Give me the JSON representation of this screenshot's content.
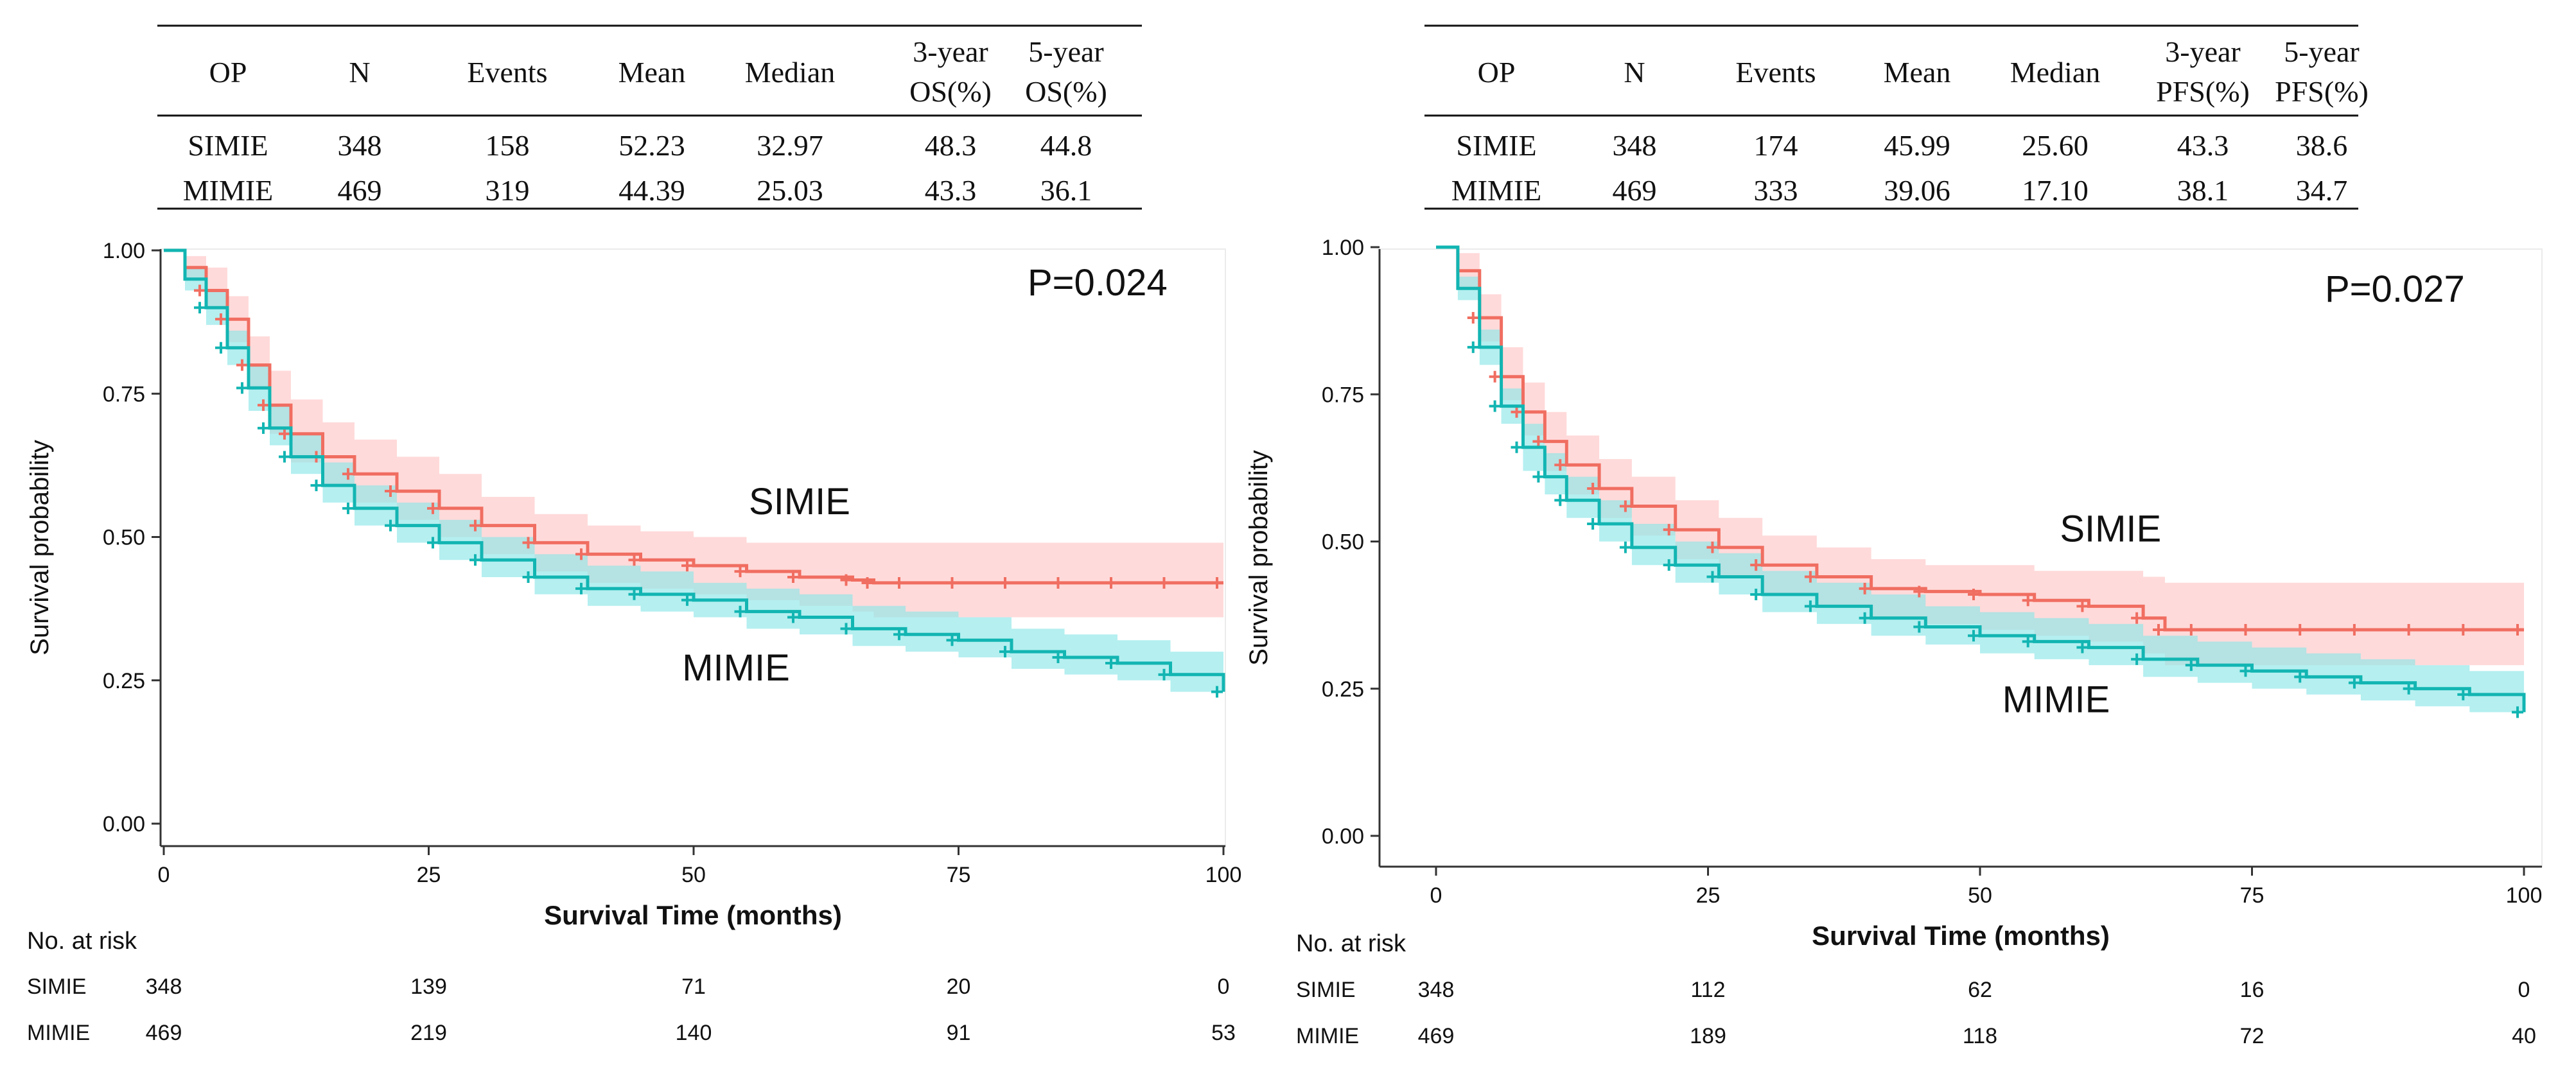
{
  "colors": {
    "simie": "#F06E61",
    "mimie": "#12B5B2",
    "simie_ci": "#FFC6C6",
    "mimie_ci": "#8DE6E8",
    "axis": "#333333"
  },
  "chart_data": [
    {
      "type": "line",
      "subtype": "kaplan-meier",
      "title": "",
      "xlabel": "Survival Time (months)",
      "ylabel": "Survival probability",
      "xlim": [
        0,
        100
      ],
      "ylim": [
        0,
        1
      ],
      "x_ticks": [
        "0",
        "25",
        "50",
        "75",
        "100"
      ],
      "y_ticks": [
        "0.00",
        "0.25",
        "0.50",
        "0.75",
        "1.00"
      ],
      "grid": false,
      "p_value": "P=0.024",
      "stats_table": {
        "headers": [
          "OP",
          "N",
          "Events",
          "Mean",
          "Median",
          "3-year OS(%)",
          "5-year OS(%)"
        ],
        "rows": [
          [
            "SIMIE",
            "348",
            "158",
            "52.23",
            "32.97",
            "48.3",
            "44.8"
          ],
          [
            "MIMIE",
            "469",
            "319",
            "44.39",
            "25.03",
            "43.3",
            "36.1"
          ]
        ]
      },
      "risk_table": {
        "title": "No. at risk",
        "times": [
          0,
          25,
          50,
          75,
          100
        ],
        "rows": [
          {
            "label": "SIMIE",
            "values": [
              "348",
              "139",
              "71",
              "20",
              "0"
            ]
          },
          {
            "label": "MIMIE",
            "values": [
              "469",
              "219",
              "140",
              "91",
              "53"
            ]
          }
        ]
      },
      "series": [
        {
          "name": "SIMIE",
          "label_pos": [
            60,
            0.54
          ],
          "x": [
            0,
            2,
            4,
            6,
            8,
            10,
            12,
            15,
            18,
            22,
            26,
            30,
            35,
            40,
            45,
            50,
            55,
            60,
            65,
            67,
            70,
            75,
            80,
            85,
            90,
            95,
            100
          ],
          "y": [
            1.0,
            0.97,
            0.93,
            0.88,
            0.8,
            0.73,
            0.68,
            0.64,
            0.61,
            0.58,
            0.55,
            0.52,
            0.49,
            0.47,
            0.46,
            0.45,
            0.44,
            0.43,
            0.425,
            0.42,
            0.42,
            0.42,
            0.42,
            0.42,
            0.42,
            0.42,
            0.42
          ],
          "ci_lower": [
            1.0,
            0.95,
            0.9,
            0.84,
            0.76,
            0.68,
            0.63,
            0.59,
            0.56,
            0.53,
            0.5,
            0.47,
            0.44,
            0.42,
            0.41,
            0.4,
            0.39,
            0.38,
            0.37,
            0.36,
            0.36,
            0.36,
            0.36,
            0.36,
            0.36,
            0.36,
            0.36
          ],
          "ci_upper": [
            1.0,
            0.99,
            0.97,
            0.92,
            0.85,
            0.79,
            0.74,
            0.7,
            0.67,
            0.64,
            0.61,
            0.57,
            0.54,
            0.52,
            0.51,
            0.5,
            0.49,
            0.49,
            0.49,
            0.49,
            0.49,
            0.49,
            0.49,
            0.49,
            0.49,
            0.49,
            0.49
          ]
        },
        {
          "name": "MIMIE",
          "label_pos": [
            54,
            0.25
          ],
          "x": [
            0,
            2,
            4,
            6,
            8,
            10,
            12,
            15,
            18,
            22,
            26,
            30,
            35,
            40,
            45,
            50,
            55,
            60,
            65,
            70,
            75,
            80,
            85,
            90,
            95,
            100
          ],
          "y": [
            1.0,
            0.95,
            0.9,
            0.83,
            0.76,
            0.69,
            0.64,
            0.59,
            0.55,
            0.52,
            0.49,
            0.46,
            0.43,
            0.41,
            0.4,
            0.39,
            0.37,
            0.36,
            0.34,
            0.33,
            0.32,
            0.3,
            0.29,
            0.28,
            0.26,
            0.23
          ],
          "ci_lower": [
            1.0,
            0.93,
            0.87,
            0.8,
            0.72,
            0.66,
            0.61,
            0.56,
            0.52,
            0.49,
            0.46,
            0.43,
            0.4,
            0.38,
            0.37,
            0.36,
            0.34,
            0.33,
            0.31,
            0.3,
            0.29,
            0.27,
            0.26,
            0.25,
            0.23,
            0.2
          ],
          "ci_upper": [
            1.0,
            0.97,
            0.93,
            0.86,
            0.8,
            0.73,
            0.68,
            0.63,
            0.59,
            0.56,
            0.53,
            0.5,
            0.47,
            0.45,
            0.44,
            0.42,
            0.41,
            0.4,
            0.38,
            0.37,
            0.36,
            0.34,
            0.33,
            0.32,
            0.3,
            0.27
          ]
        }
      ]
    },
    {
      "type": "line",
      "subtype": "kaplan-meier",
      "title": "",
      "xlabel": "Survival Time (months)",
      "ylabel": "Survival probability",
      "xlim": [
        0,
        100
      ],
      "ylim": [
        0,
        1
      ],
      "x_ticks": [
        "0",
        "25",
        "50",
        "75",
        "100"
      ],
      "y_ticks": [
        "0.00",
        "0.25",
        "0.50",
        "0.75",
        "1.00"
      ],
      "grid": false,
      "p_value": "P=0.027",
      "stats_table": {
        "headers": [
          "OP",
          "N",
          "Events",
          "Mean",
          "Median",
          "3-year PFS(%)",
          "5-year PFS(%)"
        ],
        "rows": [
          [
            "SIMIE",
            "348",
            "174",
            "45.99",
            "25.60",
            "43.3",
            "38.6"
          ],
          [
            "MIMIE",
            "469",
            "333",
            "39.06",
            "17.10",
            "38.1",
            "34.7"
          ]
        ]
      },
      "risk_table": {
        "title": "No. at risk",
        "times": [
          0,
          25,
          50,
          75,
          100
        ],
        "rows": [
          {
            "label": "SIMIE",
            "values": [
              "348",
              "112",
              "62",
              "16",
              "0"
            ]
          },
          {
            "label": "MIMIE",
            "values": [
              "469",
              "189",
              "118",
              "72",
              "40"
            ]
          }
        ]
      },
      "series": [
        {
          "name": "SIMIE",
          "label_pos": [
            62,
            0.5
          ],
          "x": [
            0,
            2,
            4,
            6,
            8,
            10,
            12,
            15,
            18,
            22,
            26,
            30,
            35,
            40,
            45,
            50,
            55,
            60,
            65,
            67,
            70,
            75,
            80,
            85,
            90,
            95,
            100
          ],
          "y": [
            1.0,
            0.96,
            0.88,
            0.78,
            0.72,
            0.67,
            0.63,
            0.59,
            0.56,
            0.52,
            0.49,
            0.46,
            0.44,
            0.42,
            0.415,
            0.41,
            0.4,
            0.39,
            0.37,
            0.35,
            0.35,
            0.35,
            0.35,
            0.35,
            0.35,
            0.35,
            0.35
          ],
          "ci_lower": [
            1.0,
            0.93,
            0.84,
            0.74,
            0.68,
            0.62,
            0.58,
            0.54,
            0.51,
            0.47,
            0.44,
            0.41,
            0.39,
            0.37,
            0.36,
            0.35,
            0.34,
            0.33,
            0.31,
            0.29,
            0.29,
            0.29,
            0.29,
            0.29,
            0.29,
            0.29,
            0.29
          ],
          "ci_upper": [
            1.0,
            0.99,
            0.92,
            0.83,
            0.77,
            0.72,
            0.68,
            0.64,
            0.61,
            0.57,
            0.54,
            0.51,
            0.49,
            0.47,
            0.46,
            0.46,
            0.45,
            0.45,
            0.44,
            0.43,
            0.43,
            0.43,
            0.43,
            0.43,
            0.43,
            0.43,
            0.43
          ]
        },
        {
          "name": "MIMIE",
          "label_pos": [
            57,
            0.21
          ],
          "x": [
            0,
            2,
            4,
            6,
            8,
            10,
            12,
            15,
            18,
            22,
            26,
            30,
            35,
            40,
            45,
            50,
            55,
            60,
            65,
            70,
            75,
            80,
            85,
            90,
            95,
            100
          ],
          "y": [
            1.0,
            0.93,
            0.83,
            0.73,
            0.66,
            0.61,
            0.57,
            0.53,
            0.49,
            0.46,
            0.44,
            0.41,
            0.39,
            0.37,
            0.355,
            0.34,
            0.33,
            0.32,
            0.3,
            0.29,
            0.28,
            0.27,
            0.26,
            0.25,
            0.24,
            0.21
          ],
          "ci_lower": [
            1.0,
            0.91,
            0.8,
            0.7,
            0.62,
            0.58,
            0.54,
            0.5,
            0.46,
            0.43,
            0.41,
            0.38,
            0.36,
            0.34,
            0.325,
            0.31,
            0.3,
            0.29,
            0.27,
            0.26,
            0.25,
            0.24,
            0.23,
            0.22,
            0.21,
            0.18
          ],
          "ci_upper": [
            1.0,
            0.95,
            0.86,
            0.76,
            0.7,
            0.65,
            0.61,
            0.57,
            0.53,
            0.5,
            0.48,
            0.45,
            0.43,
            0.41,
            0.39,
            0.38,
            0.37,
            0.36,
            0.34,
            0.33,
            0.32,
            0.31,
            0.3,
            0.29,
            0.28,
            0.25
          ]
        }
      ]
    }
  ]
}
